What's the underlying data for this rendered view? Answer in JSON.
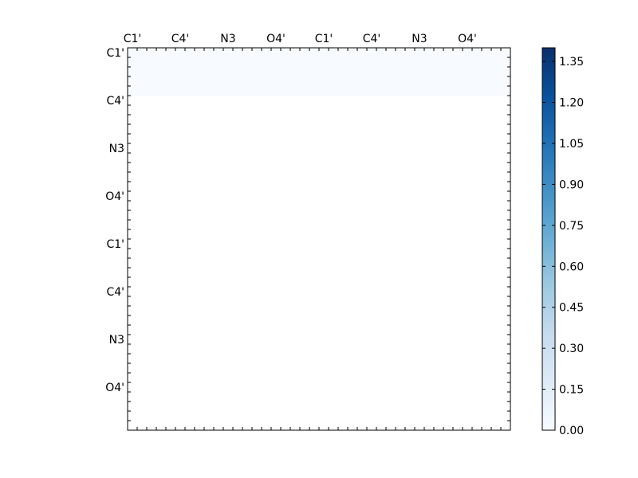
{
  "chart_data": {
    "type": "heatmap",
    "title": "",
    "xlabel": "",
    "ylabel": "",
    "x_tick_labels": [
      "C1'",
      "C4'",
      "N3",
      "O4'",
      "C1'",
      "C4'",
      "N3",
      "O4'"
    ],
    "y_tick_labels": [
      "C1'",
      "C4'",
      "N3",
      "O4'",
      "C1'",
      "C4'",
      "N3",
      "O4'"
    ],
    "grid_size": 40,
    "matrix_shape": "upper-triangular",
    "colormap": "Blues",
    "colormap_stops": [
      "#f7fbff",
      "#deebf7",
      "#c6dbef",
      "#9ecae1",
      "#6baed6",
      "#4292c6",
      "#2171b5",
      "#08519c",
      "#08306b"
    ],
    "colorbar": {
      "vmin": 0.0,
      "vmax": 1.4,
      "tick_values": [
        0.0,
        0.15,
        0.3,
        0.45,
        0.6,
        0.75,
        0.9,
        1.05,
        1.2,
        1.35
      ],
      "tick_labels": [
        "0.00",
        "0.15",
        "0.30",
        "0.45",
        "0.60",
        "0.75",
        "0.90",
        "1.05",
        "1.20",
        "1.35"
      ]
    },
    "rows": [
      "0000 0000 0000 0000 0000 0000 0000 0000 0000 0000",
      "0000 0000 0000 0000 0000 0000 0000 0000 0000 0000",
      "0000 0000 0000 0000 0000 0000 0000 0000 0000 0000",
      "0000 0000 0000 0000 0000 0000 0000 0000 0000 0000",
      "0000 0000 0000 0000 0000 0000 0000 0000 0000 0000"
    ]
  }
}
